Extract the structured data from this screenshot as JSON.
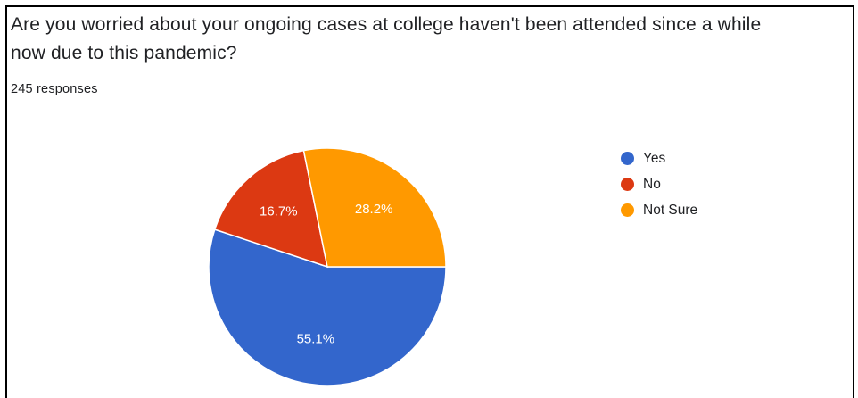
{
  "question": {
    "line1": "Are you worried about your ongoing cases at college haven't been attended since a while",
    "line2": "now due to this pandemic?"
  },
  "responses_text": "245 responses",
  "chart_data": {
    "type": "pie",
    "title": "Are you worried about your ongoing cases at college haven't been attended since a while now due to this pandemic?",
    "total_responses": 245,
    "legend_position": "right",
    "slices": [
      {
        "label": "Yes",
        "value": 55.1,
        "display": "55.1%",
        "color": "#3366cc"
      },
      {
        "label": "No",
        "value": 16.7,
        "display": "16.7%",
        "color": "#dc3912"
      },
      {
        "label": "Not Sure",
        "value": 28.2,
        "display": "28.2%",
        "color": "#ff9900"
      }
    ]
  }
}
